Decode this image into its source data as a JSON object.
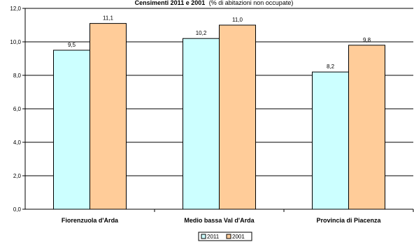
{
  "chart_data": {
    "type": "bar",
    "title_bold": "Censimenti 2011 e 2001",
    "title_rest": "(% di abitazioni non occupate)",
    "categories": [
      "Fiorenzuola d'Arda",
      "Medio bassa Val d'Arda",
      "Provincia di Piacenza"
    ],
    "series": [
      {
        "name": "2011",
        "values": [
          9.5,
          10.2,
          8.2
        ],
        "labels": [
          "9,5",
          "10,2",
          "8,2"
        ],
        "color": "#ccffff"
      },
      {
        "name": "2001",
        "values": [
          11.1,
          11.0,
          9.8
        ],
        "labels": [
          "11,1",
          "11,0",
          "9,8"
        ],
        "color": "#ffcc99"
      }
    ],
    "ylim": [
      0,
      12
    ],
    "yticks": [
      0,
      2,
      4,
      6,
      8,
      10,
      12
    ],
    "ytick_labels": [
      "0,0",
      "2,0",
      "4,0",
      "6,0",
      "8,0",
      "10,0",
      "12,0"
    ],
    "grid": true,
    "legend_position": "bottom-center"
  }
}
